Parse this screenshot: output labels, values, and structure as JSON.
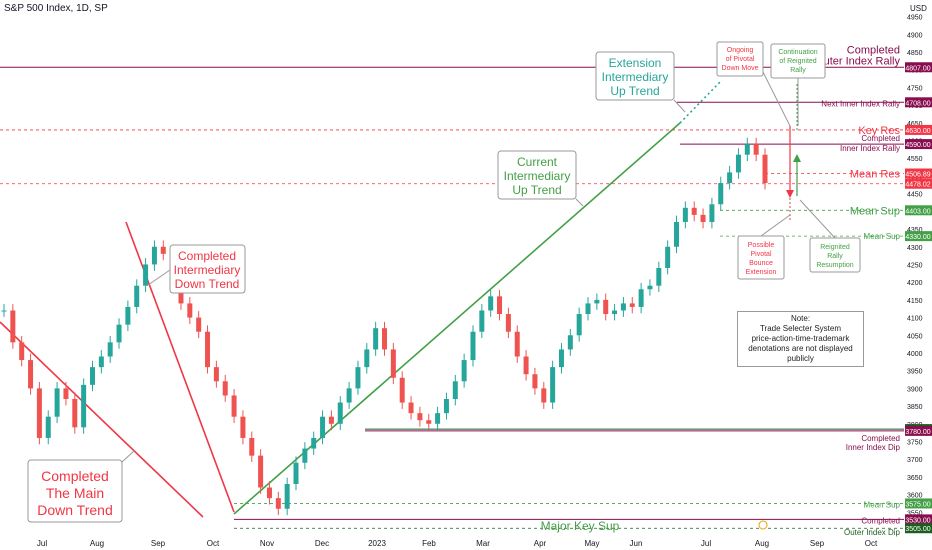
{
  "header": {
    "symbol": "S&P 500 Index, 1D, SP",
    "currency": "USD"
  },
  "note": {
    "l1": "Note:",
    "l2": "Trade Selecter System",
    "l3": "price-action-time-trademark",
    "l4": "denotations are not displayed publicly"
  },
  "chart_data": {
    "type": "candlestick",
    "x_labels": [
      "Jul",
      "Aug",
      "Sep",
      "Oct",
      "Nov",
      "Dec",
      "2023",
      "Feb",
      "Mar",
      "Apr",
      "May",
      "Jun",
      "Jul",
      "Aug",
      "Sep",
      "Oct"
    ],
    "y_ticks": [
      3550,
      3600,
      3650,
      3700,
      3750,
      3800,
      3850,
      3900,
      3950,
      4000,
      4050,
      4100,
      4150,
      4200,
      4250,
      4300,
      4350,
      4400,
      4450,
      4500,
      4550,
      4600,
      4650,
      4700,
      4750,
      4800,
      4850,
      4900,
      4950
    ],
    "ylim": [
      3500,
      4980
    ],
    "closes": [
      4120,
      4030,
      3980,
      3900,
      3760,
      3820,
      3900,
      3870,
      3790,
      3910,
      3960,
      3990,
      4030,
      4080,
      4130,
      4190,
      4250,
      4300,
      4280,
      4190,
      4140,
      4100,
      4060,
      3960,
      3920,
      3880,
      3820,
      3760,
      3710,
      3620,
      3590,
      3560,
      3630,
      3690,
      3730,
      3760,
      3820,
      3800,
      3860,
      3900,
      3960,
      4010,
      4070,
      4010,
      3930,
      3860,
      3830,
      3810,
      3800,
      3830,
      3870,
      3920,
      3980,
      4060,
      4120,
      4160,
      4110,
      4060,
      3990,
      3940,
      3900,
      3860,
      3960,
      4010,
      4050,
      4110,
      4140,
      4150,
      4110,
      4120,
      4140,
      4130,
      4180,
      4190,
      4240,
      4300,
      4370,
      4410,
      4390,
      4370,
      4420,
      4480,
      4510,
      4560,
      4590,
      4560,
      4480
    ],
    "horizontal_levels": [
      {
        "label": "Completed Outer Index Rally",
        "value": 4807.0,
        "tag": "4807.00",
        "color": "#880e4f"
      },
      {
        "label": "Next Inner Index Rally",
        "value": 4708.0,
        "tag": "4708.00",
        "color": "#880e4f"
      },
      {
        "label": "Key Res",
        "value": 4630.0,
        "tag": "4630.00",
        "color": "#f23645"
      },
      {
        "label": "Completed Inner Index Rally",
        "value": 4590.0,
        "tag": "4590.00",
        "color": "#880e4f"
      },
      {
        "label": "Mean Res",
        "value": 4506.89,
        "tag": "4506.89",
        "color": "#f23645"
      },
      {
        "label": "",
        "value": 4478.02,
        "tag": "4478.02",
        "color": "#f23645"
      },
      {
        "label": "Mean Sup",
        "value": 4403.0,
        "tag": "4403.00",
        "color": "#43a047"
      },
      {
        "label": "Mean Sup",
        "value": 4330.0,
        "tag": "4330.00",
        "color": "#43a047"
      },
      {
        "label": "",
        "value": 3785.0,
        "tag": "3785.00",
        "color": "#1b5e20"
      },
      {
        "label": "Completed Inner Index Dip",
        "value": 3780.0,
        "tag": "3780.00",
        "color": "#880e4f"
      },
      {
        "label": "Mean Sup",
        "value": 3575.0,
        "tag": "3575.00",
        "color": "#43a047"
      },
      {
        "label": "Completed",
        "value": 3530.0,
        "tag": "3530.00",
        "color": "#880e4f"
      },
      {
        "label": "Outer Index Dip",
        "value": 3505.0,
        "tag": "3505.00",
        "color": "#1b5e20"
      }
    ],
    "annotations": {
      "main_down": [
        "Completed",
        "The Main",
        "Down Trend"
      ],
      "inter_down": [
        "Completed",
        "Intermediary",
        "Down Trend"
      ],
      "current_up": [
        "Current",
        "Intermediary",
        "Up Trend"
      ],
      "extension_up": [
        "Extension",
        "Intermediary",
        "Up Trend"
      ],
      "ongoing_down": [
        "Ongoing",
        "of Pivotal",
        "Down Move"
      ],
      "continuation": [
        "Continuation",
        "of Reignited",
        "Rally"
      ],
      "possible_bounce": [
        "Possible",
        "Pivotal",
        "Bounce",
        "Extension"
      ],
      "reignited": [
        "Reignited",
        "Rally",
        "Resumption"
      ],
      "major_key_sup": "Major Key Sup"
    }
  }
}
